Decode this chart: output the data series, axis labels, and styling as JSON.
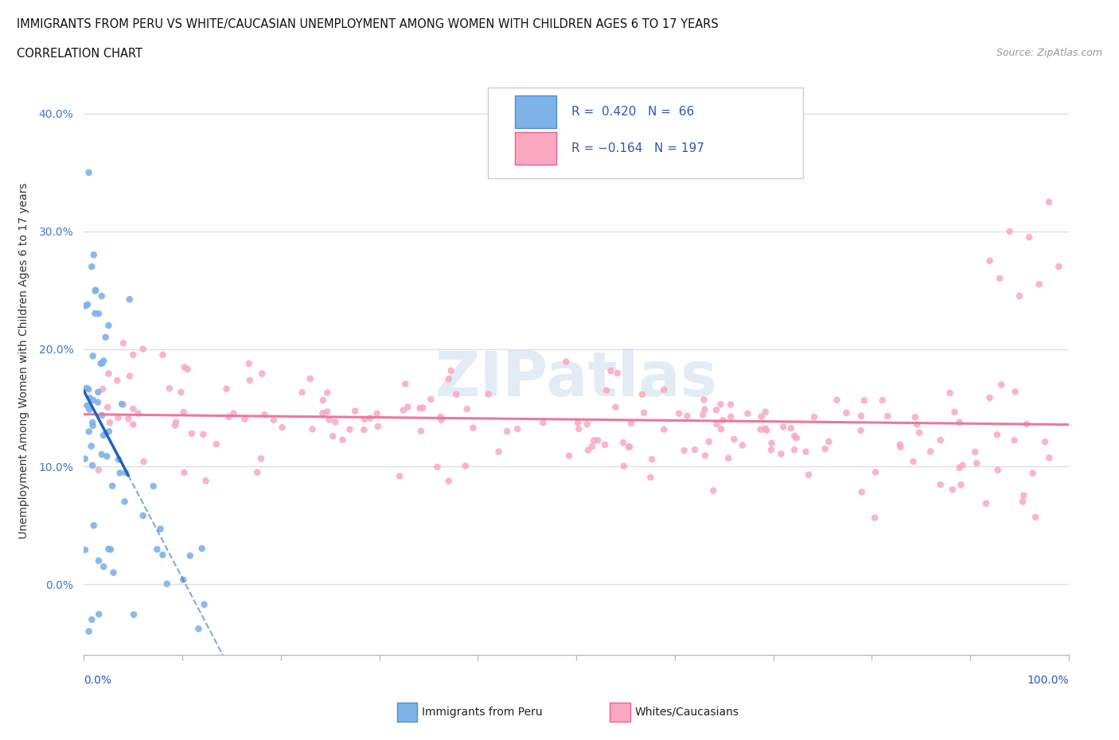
{
  "title_line1": "IMMIGRANTS FROM PERU VS WHITE/CAUCASIAN UNEMPLOYMENT AMONG WOMEN WITH CHILDREN AGES 6 TO 17 YEARS",
  "title_line2": "CORRELATION CHART",
  "source": "Source: ZipAtlas.com",
  "ylabel": "Unemployment Among Women with Children Ages 6 to 17 years",
  "ytick_vals": [
    0.0,
    10.0,
    20.0,
    30.0,
    40.0
  ],
  "xlim": [
    0.0,
    100.0
  ],
  "ylim": [
    -6.0,
    44.0
  ],
  "color_peru": "#7EB3E8",
  "color_white": "#F9A8C0",
  "color_peru_dark": "#4A90D9",
  "color_white_dark": "#F06090",
  "color_peru_trend": "#2060C0",
  "color_white_trend": "#EE7799"
}
